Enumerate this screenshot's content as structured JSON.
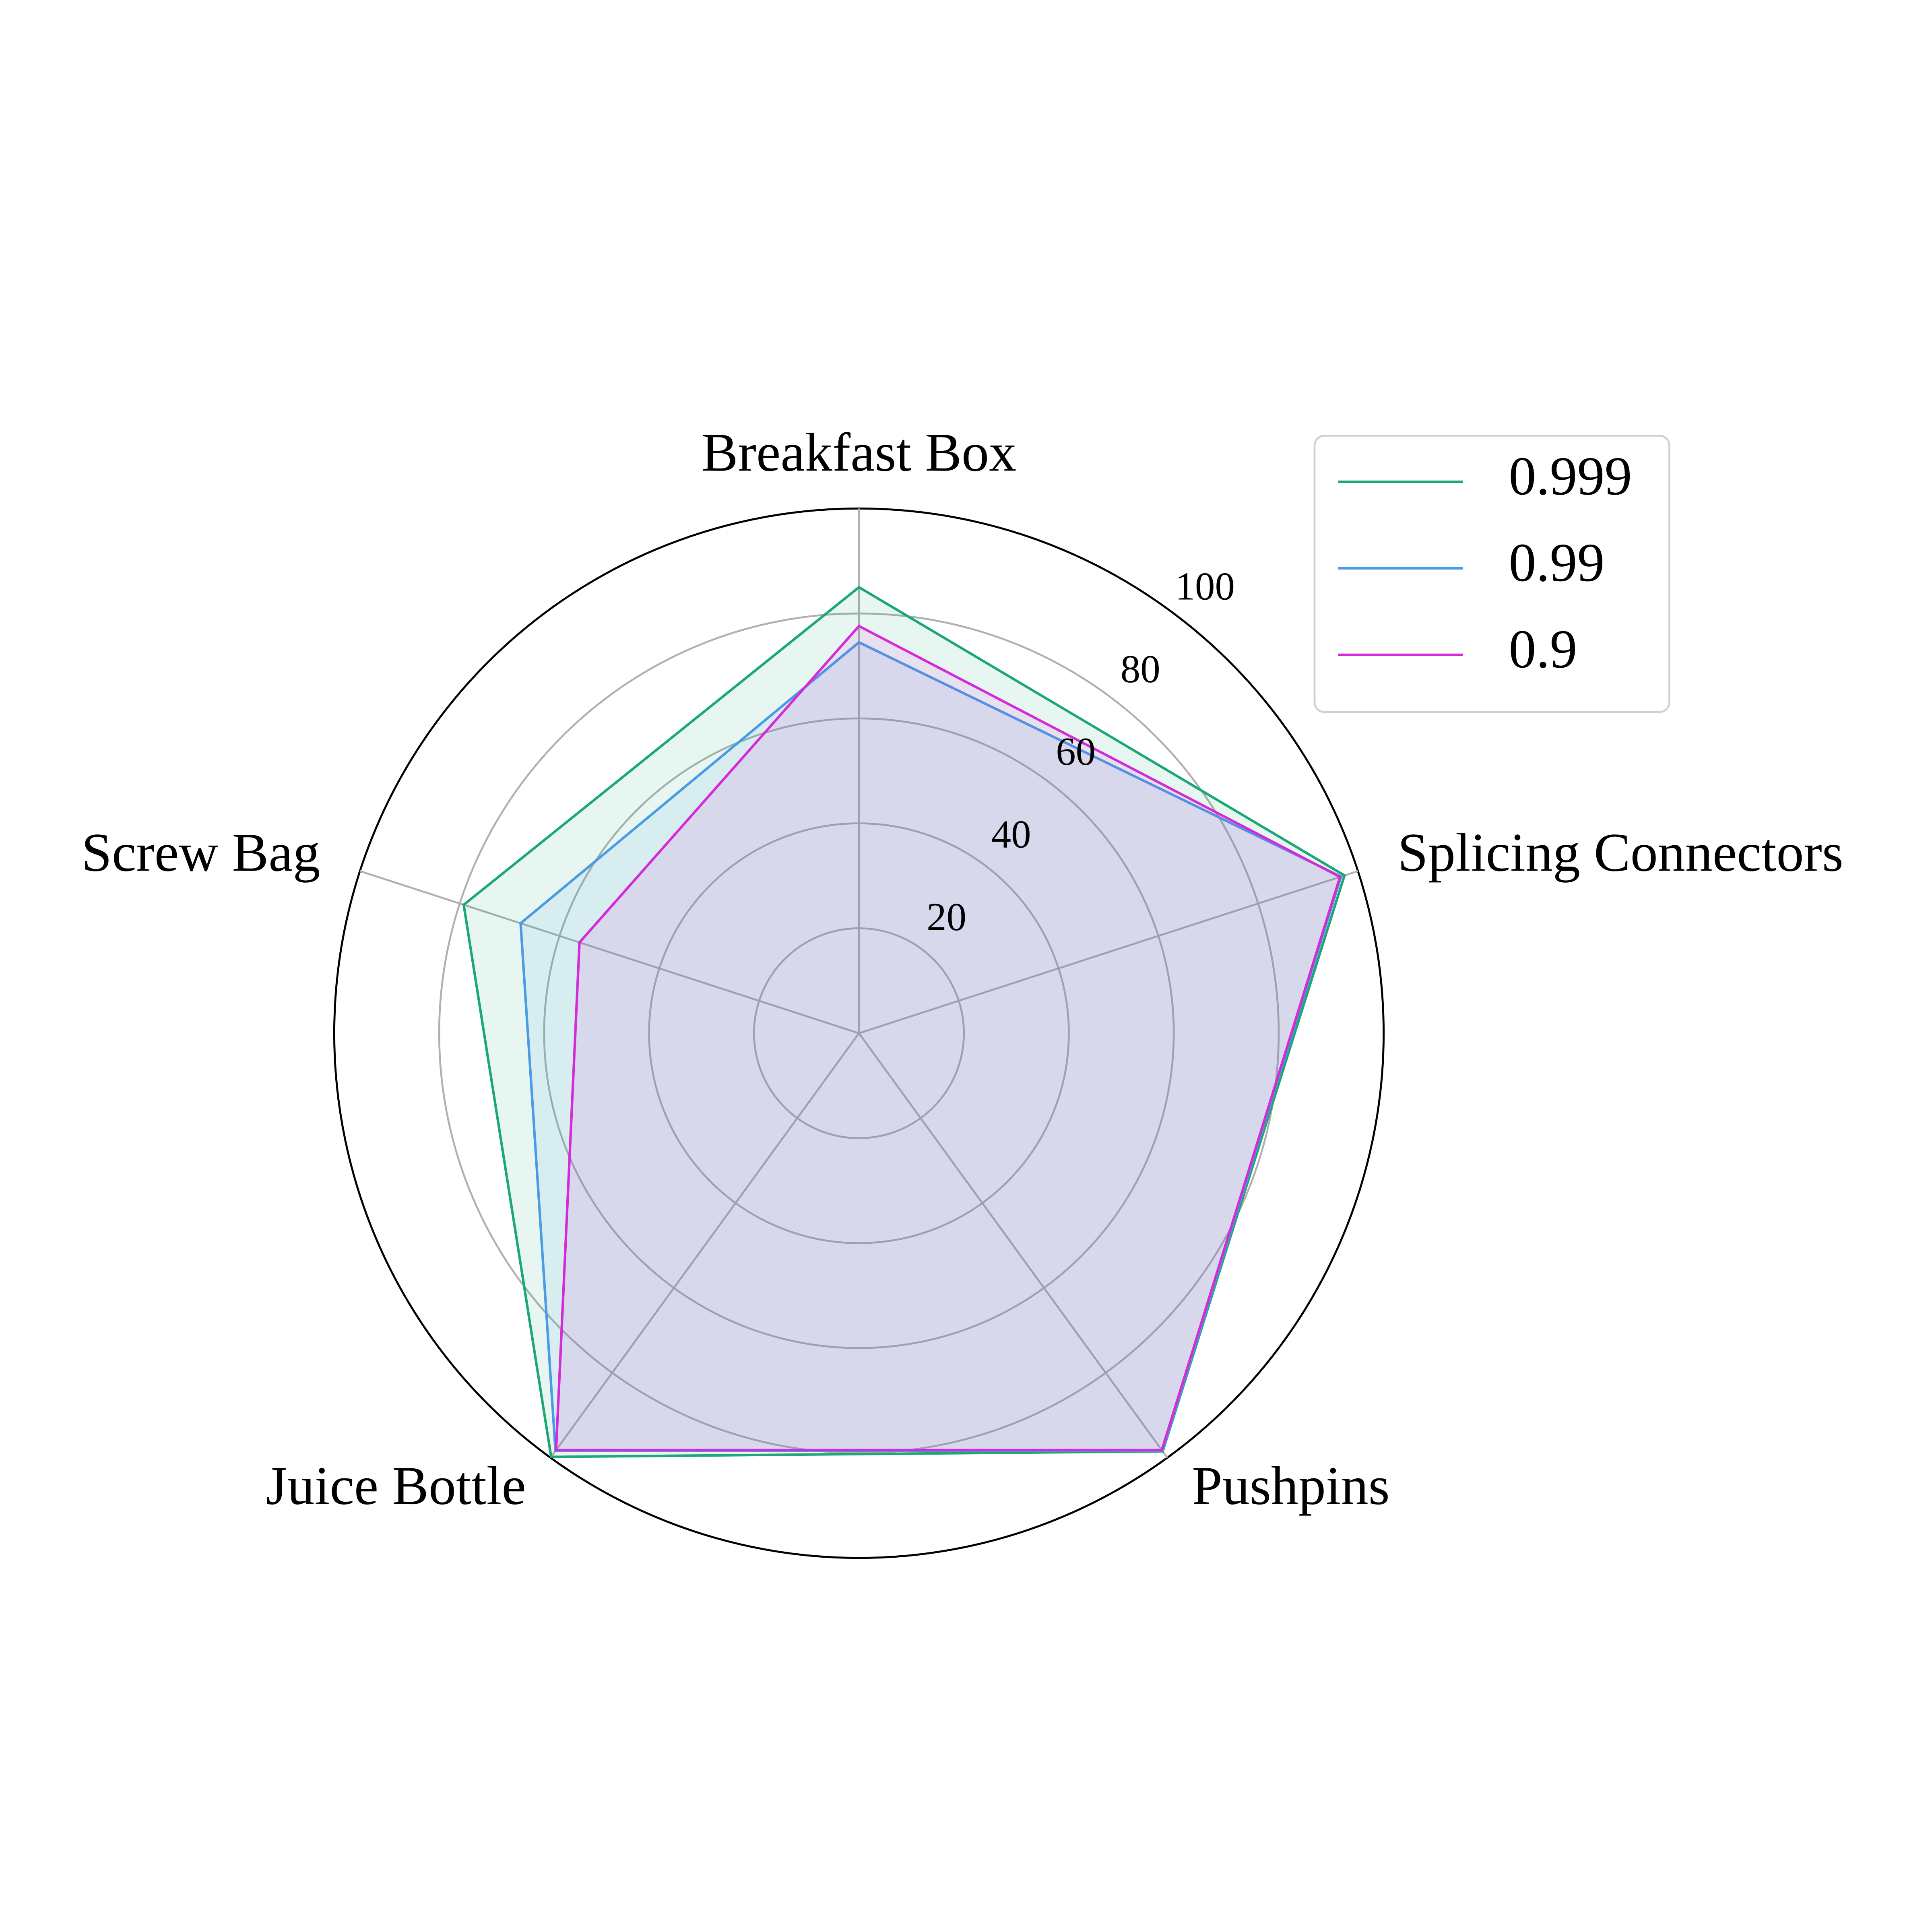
{
  "chart_data": {
    "type": "radar",
    "categories": [
      "Breakfast Box",
      "Splicing Connectors",
      "Pushpins",
      "Juice Bottle",
      "Screw Bag"
    ],
    "series": [
      {
        "name": "0.999",
        "color": "#1ba874",
        "values": [
          85,
          97.3,
          98.5,
          99.8,
          79.2
        ]
      },
      {
        "name": "0.99",
        "color": "#4a9be6",
        "values": [
          74.5,
          96.6,
          98.4,
          98.4,
          67.8
        ]
      },
      {
        "name": "0.9",
        "color": "#d42ad8",
        "values": [
          77.6,
          96.4,
          98.2,
          98.2,
          56
        ]
      }
    ],
    "rlim": [
      0,
      100
    ],
    "rticks": [
      20,
      40,
      60,
      80,
      100
    ],
    "grid": true,
    "fill": true,
    "legend": "upper right"
  }
}
